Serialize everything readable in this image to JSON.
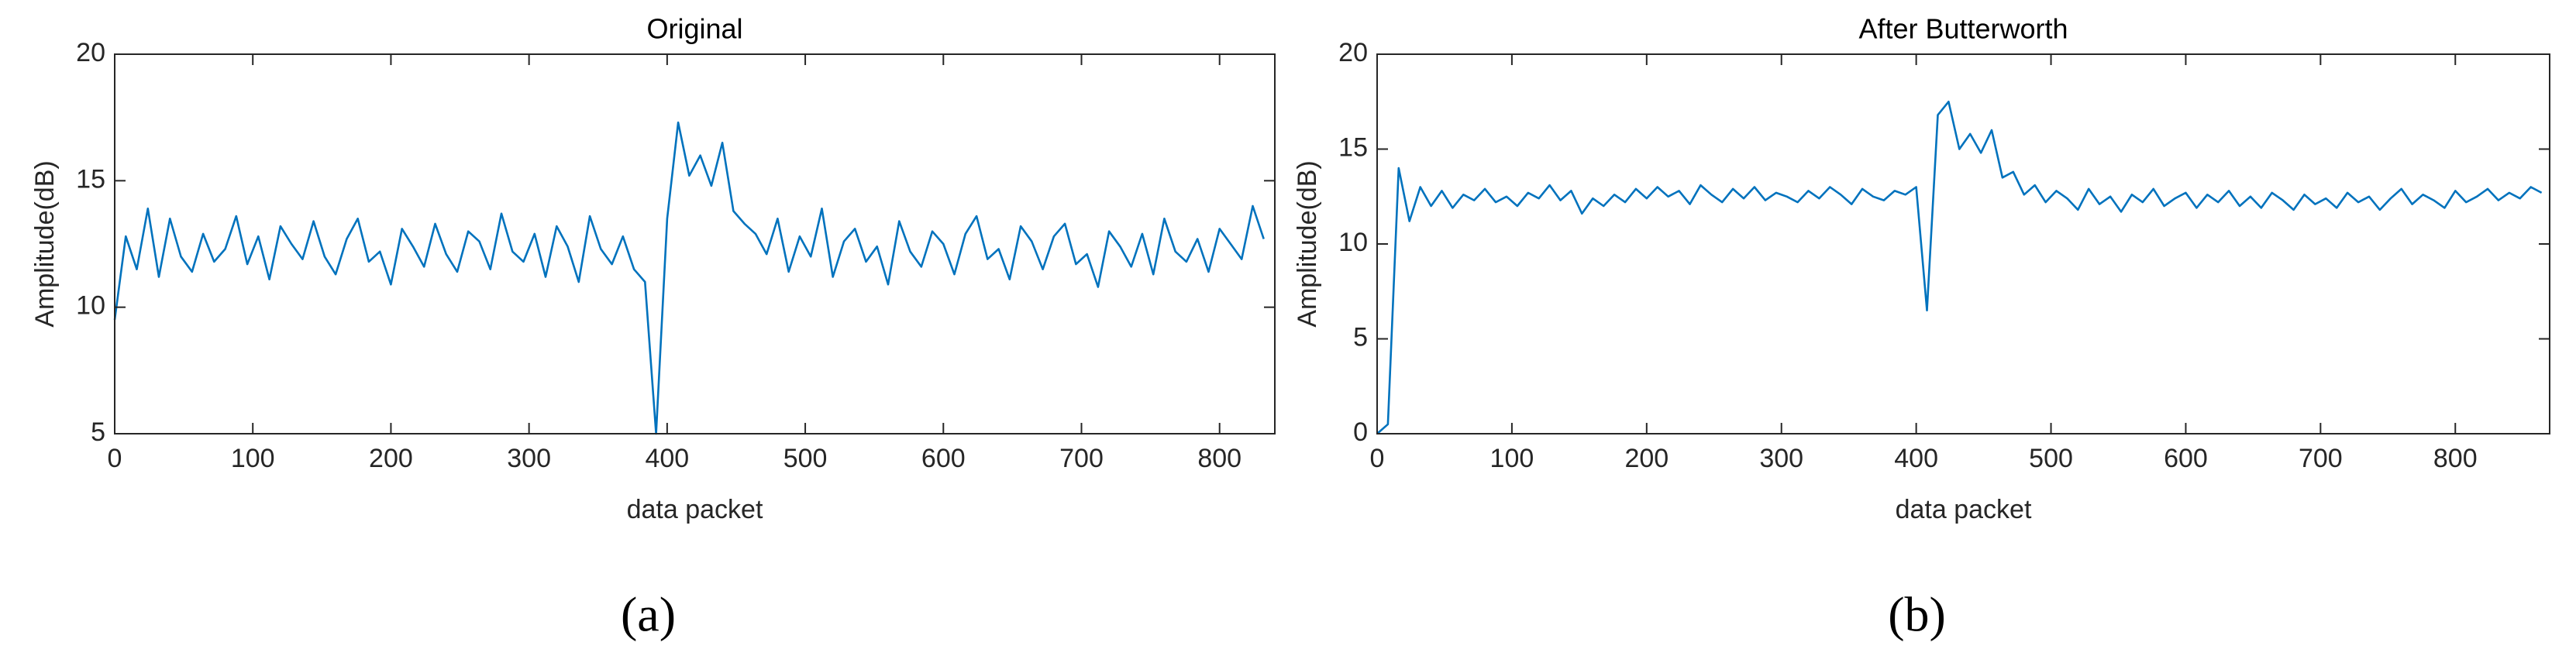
{
  "chart_data": [
    {
      "type": "line",
      "title": "Original",
      "x_label": "data packet",
      "y_label": "Amplitude(dB)",
      "panel_label": "(a)",
      "x": [
        0,
        8,
        16,
        24,
        32,
        40,
        48,
        56,
        64,
        72,
        80,
        88,
        96,
        104,
        112,
        120,
        128,
        136,
        144,
        152,
        160,
        168,
        176,
        184,
        192,
        200,
        208,
        216,
        224,
        232,
        240,
        248,
        256,
        264,
        272,
        280,
        288,
        296,
        304,
        312,
        320,
        328,
        336,
        344,
        352,
        360,
        368,
        376,
        384,
        392,
        400,
        408,
        416,
        424,
        432,
        440,
        448,
        456,
        464,
        472,
        480,
        488,
        496,
        504,
        512,
        520,
        528,
        536,
        544,
        552,
        560,
        568,
        576,
        584,
        592,
        600,
        608,
        616,
        624,
        632,
        640,
        648,
        656,
        664,
        672,
        680,
        688,
        696,
        704,
        712,
        720,
        728,
        736,
        744,
        752,
        760,
        768,
        776,
        784,
        792,
        800,
        808,
        816,
        824,
        832
      ],
      "series": [
        {
          "name": "Amplitude",
          "color": "#0072bd",
          "values": [
            9.5,
            12.8,
            11.5,
            13.9,
            11.2,
            13.5,
            12.0,
            11.4,
            12.9,
            11.8,
            12.3,
            13.6,
            11.7,
            12.8,
            11.1,
            13.2,
            12.5,
            11.9,
            13.4,
            12.0,
            11.3,
            12.7,
            13.5,
            11.8,
            12.2,
            10.9,
            13.1,
            12.4,
            11.6,
            13.3,
            12.1,
            11.4,
            13.0,
            12.6,
            11.5,
            13.7,
            12.2,
            11.8,
            12.9,
            11.2,
            13.2,
            12.4,
            11.0,
            13.6,
            12.3,
            11.7,
            12.8,
            11.5,
            11.0,
            5.0,
            13.5,
            17.3,
            15.2,
            16.0,
            14.8,
            16.5,
            13.8,
            13.3,
            12.9,
            12.1,
            13.5,
            11.4,
            12.8,
            12.0,
            13.9,
            11.2,
            12.6,
            13.1,
            11.8,
            12.4,
            10.9,
            13.4,
            12.2,
            11.6,
            13.0,
            12.5,
            11.3,
            12.9,
            13.6,
            11.9,
            12.3,
            11.1,
            13.2,
            12.6,
            11.5,
            12.8,
            13.3,
            11.7,
            12.1,
            10.8,
            13.0,
            12.4,
            11.6,
            12.9,
            11.3,
            13.5,
            12.2,
            11.8,
            12.7,
            11.4,
            13.1,
            12.5,
            11.9,
            14.0,
            12.7
          ]
        }
      ],
      "xlim": [
        0,
        840
      ],
      "xticks": [
        0,
        100,
        200,
        300,
        400,
        500,
        600,
        700,
        800
      ],
      "ylim": [
        5,
        20
      ],
      "yticks": [
        5,
        10,
        15,
        20
      ]
    },
    {
      "type": "line",
      "title": "After Butterworth",
      "x_label": "data packet",
      "y_label": "Amplitude(dB)",
      "panel_label": "(b)",
      "x": [
        0,
        8,
        16,
        24,
        32,
        40,
        48,
        56,
        64,
        72,
        80,
        88,
        96,
        104,
        112,
        120,
        128,
        136,
        144,
        152,
        160,
        168,
        176,
        184,
        192,
        200,
        208,
        216,
        224,
        232,
        240,
        248,
        256,
        264,
        272,
        280,
        288,
        296,
        304,
        312,
        320,
        328,
        336,
        344,
        352,
        360,
        368,
        376,
        384,
        392,
        400,
        408,
        416,
        424,
        432,
        440,
        448,
        456,
        464,
        472,
        480,
        488,
        496,
        504,
        512,
        520,
        528,
        536,
        544,
        552,
        560,
        568,
        576,
        584,
        592,
        600,
        608,
        616,
        624,
        632,
        640,
        648,
        656,
        664,
        672,
        680,
        688,
        696,
        704,
        712,
        720,
        728,
        736,
        744,
        752,
        760,
        768,
        776,
        784,
        792,
        800,
        808,
        816,
        824,
        832,
        840,
        848,
        856,
        864
      ],
      "series": [
        {
          "name": "Amplitude",
          "color": "#0072bd",
          "values": [
            0,
            0.5,
            14.0,
            11.2,
            13.0,
            12.0,
            12.8,
            11.9,
            12.6,
            12.3,
            12.9,
            12.2,
            12.5,
            12.0,
            12.7,
            12.4,
            13.1,
            12.3,
            12.8,
            11.6,
            12.4,
            12.0,
            12.6,
            12.2,
            12.9,
            12.4,
            13.0,
            12.5,
            12.8,
            12.1,
            13.1,
            12.6,
            12.2,
            12.9,
            12.4,
            13.0,
            12.3,
            12.7,
            12.5,
            12.2,
            12.8,
            12.4,
            13.0,
            12.6,
            12.1,
            12.9,
            12.5,
            12.3,
            12.8,
            12.6,
            13.0,
            6.5,
            16.8,
            17.5,
            15.0,
            15.8,
            14.8,
            16.0,
            13.5,
            13.8,
            12.6,
            13.1,
            12.2,
            12.8,
            12.4,
            11.8,
            12.9,
            12.1,
            12.5,
            11.7,
            12.6,
            12.2,
            12.9,
            12.0,
            12.4,
            12.7,
            11.9,
            12.6,
            12.2,
            12.8,
            12.0,
            12.5,
            11.9,
            12.7,
            12.3,
            11.8,
            12.6,
            12.1,
            12.4,
            11.9,
            12.7,
            12.2,
            12.5,
            11.8,
            12.4,
            12.9,
            12.1,
            12.6,
            12.3,
            11.9,
            12.8,
            12.2,
            12.5,
            12.9,
            12.3,
            12.7,
            12.4,
            13.0,
            12.7
          ]
        }
      ],
      "xlim": [
        0,
        870
      ],
      "xticks": [
        0,
        100,
        200,
        300,
        400,
        500,
        600,
        700,
        800
      ],
      "ylim": [
        0,
        20
      ],
      "yticks": [
        0,
        5,
        10,
        15,
        20
      ]
    }
  ]
}
